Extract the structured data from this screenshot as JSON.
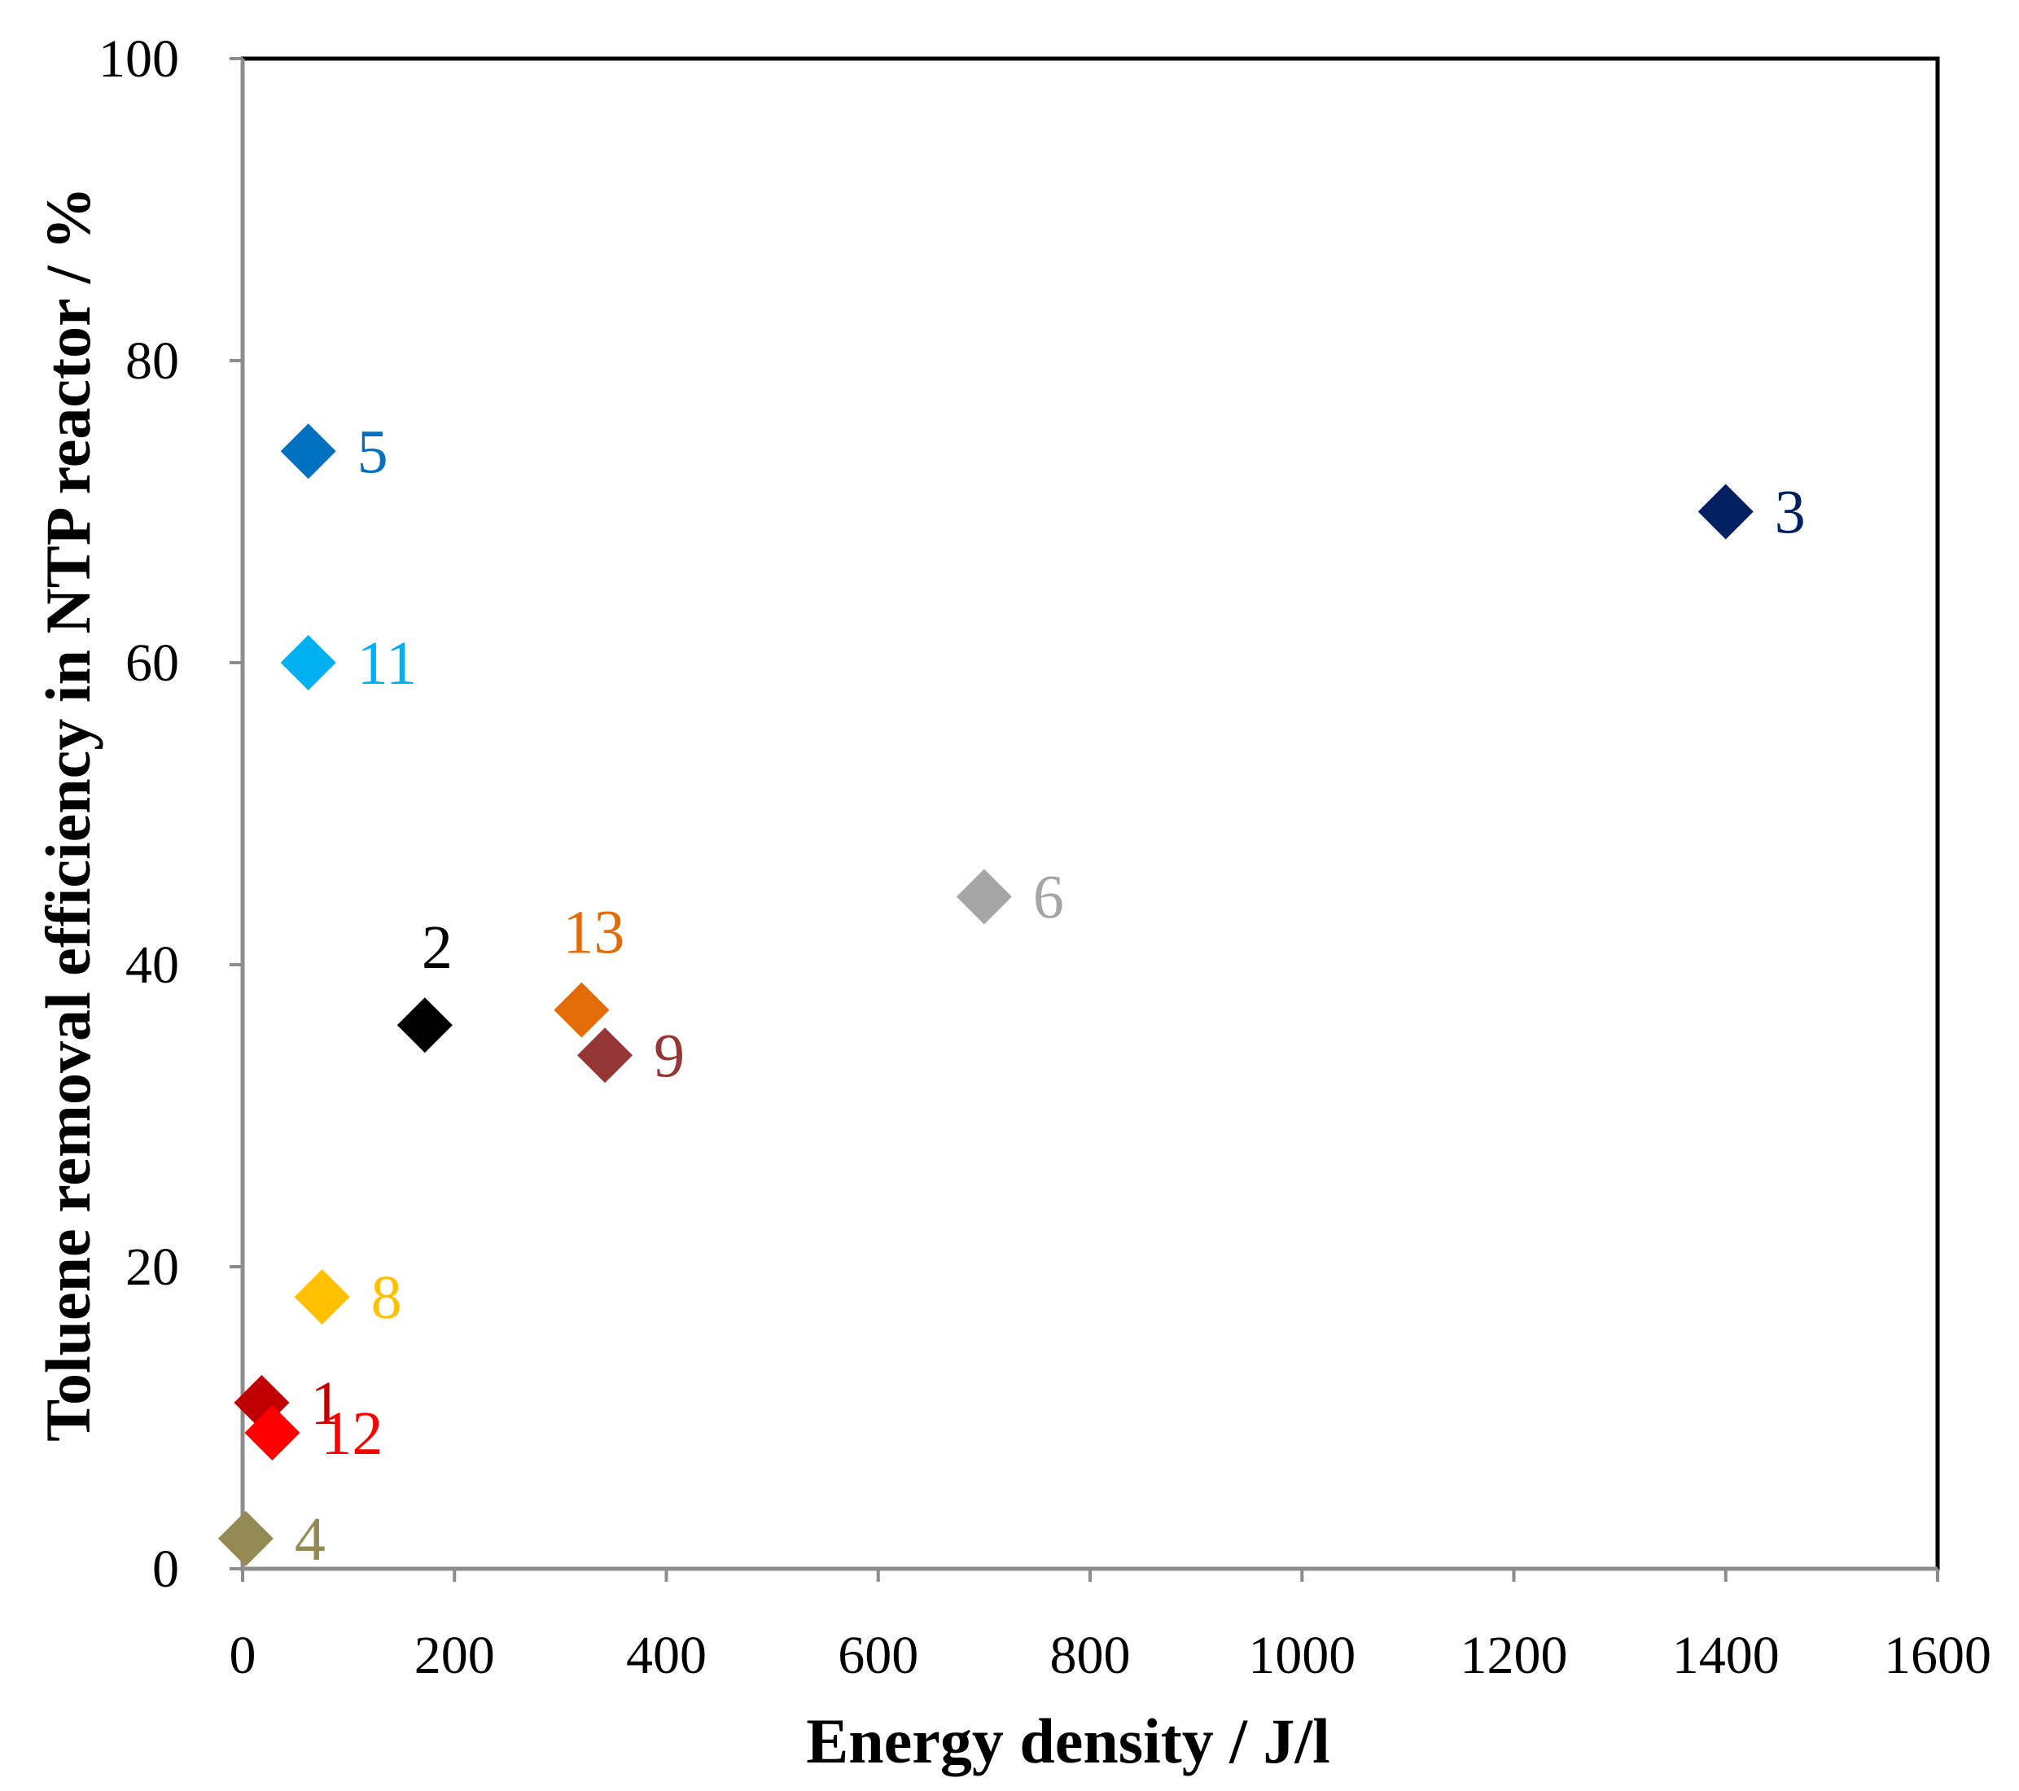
{
  "chart_data": {
    "type": "scatter",
    "title": "",
    "xlabel": "Energy density  / J/l",
    "ylabel": "Toluene removal efficiency in NTP reactor / %",
    "xlim": [
      0,
      1600
    ],
    "ylim": [
      0,
      100
    ],
    "xticks": [
      0,
      200,
      400,
      600,
      800,
      1000,
      1200,
      1400,
      1600
    ],
    "yticks": [
      0,
      20,
      40,
      60,
      80,
      100
    ],
    "xtick_labels": [
      "0",
      "200",
      "400",
      "600",
      "800",
      "1000",
      "1200",
      "1400",
      "1600"
    ],
    "ytick_labels": [
      "0",
      "20",
      "40",
      "60",
      "80",
      "100"
    ],
    "grid": false,
    "legend": "none",
    "marker": "diamond",
    "points": [
      {
        "label": "1",
        "x": 18,
        "y": 11,
        "color": "#C00000",
        "label_position": "right"
      },
      {
        "label": "2",
        "x": 172,
        "y": 36,
        "color": "#000000",
        "label_position": "above"
      },
      {
        "label": "3",
        "x": 1400,
        "y": 70,
        "color": "#002060",
        "label_position": "right"
      },
      {
        "label": "4",
        "x": 3,
        "y": 2,
        "color": "#948A54",
        "label_position": "right"
      },
      {
        "label": "5",
        "x": 62,
        "y": 74,
        "color": "#0070C0",
        "label_position": "right"
      },
      {
        "label": "6",
        "x": 700,
        "y": 44.5,
        "color": "#A6A6A6",
        "label_position": "right"
      },
      {
        "label": "8",
        "x": 75,
        "y": 18,
        "color": "#FFC000",
        "label_position": "right"
      },
      {
        "label": "9",
        "x": 342,
        "y": 34,
        "color": "#953735",
        "label_position": "right"
      },
      {
        "label": "11",
        "x": 62,
        "y": 60,
        "color": "#00B0F0",
        "label_position": "right"
      },
      {
        "label": "12",
        "x": 28,
        "y": 9,
        "color": "#FF0000",
        "label_position": "right"
      },
      {
        "label": "13",
        "x": 320,
        "y": 37,
        "color": "#E36C09",
        "label_position": "above"
      }
    ]
  }
}
